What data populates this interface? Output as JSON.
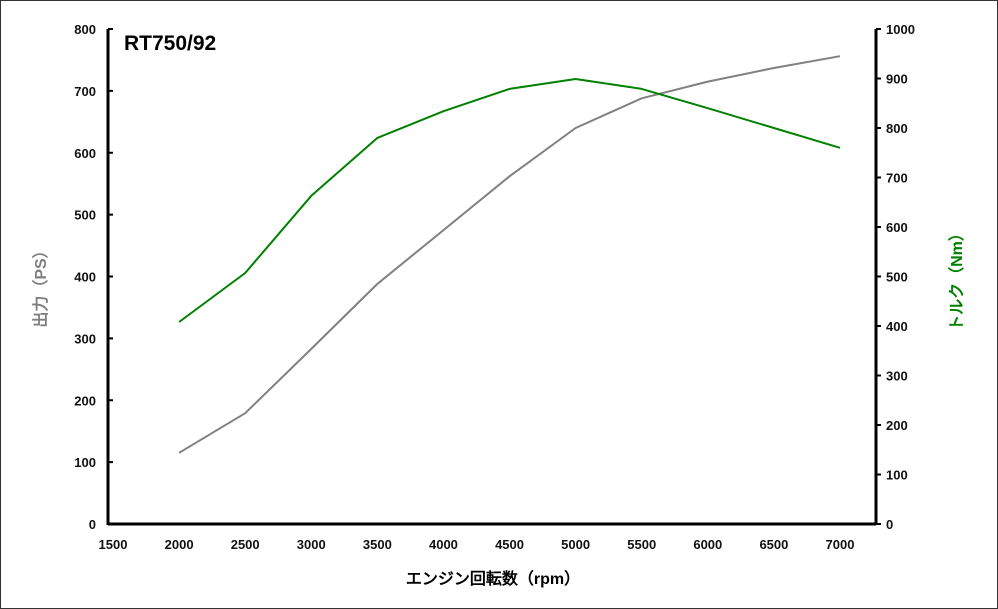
{
  "chart_data": {
    "type": "line",
    "title": "RT750/92",
    "xlabel": "エンジン回転数（rpm）",
    "ylabel_left": "出力（PS）",
    "ylabel_right": "トルク（Nm）",
    "xlim": [
      1500,
      7000
    ],
    "ylim_left": [
      0,
      800
    ],
    "ylim_right": [
      0,
      1000
    ],
    "x_ticks": [
      1500,
      2000,
      2500,
      3000,
      3500,
      4000,
      4500,
      5000,
      5500,
      6000,
      6500,
      7000
    ],
    "y_ticks_left": [
      0,
      100,
      200,
      300,
      400,
      500,
      600,
      700,
      800
    ],
    "y_ticks_right": [
      0,
      100,
      200,
      300,
      400,
      500,
      600,
      700,
      800,
      900,
      1000
    ],
    "grid": false,
    "x": [
      2000,
      2500,
      3000,
      3500,
      4000,
      4500,
      5000,
      5500,
      6000,
      6500,
      7000
    ],
    "series": [
      {
        "name": "出力 (PS)",
        "axis": "left",
        "color": "#808080",
        "values": [
          115,
          179,
          283,
          388,
          475,
          562,
          640,
          688,
          715,
          737,
          756
        ]
      },
      {
        "name": "トルク (Nm)",
        "axis": "right",
        "color": "#008000",
        "values": [
          408,
          507,
          663,
          780,
          834,
          879,
          899,
          879,
          840,
          800,
          760
        ]
      }
    ]
  }
}
